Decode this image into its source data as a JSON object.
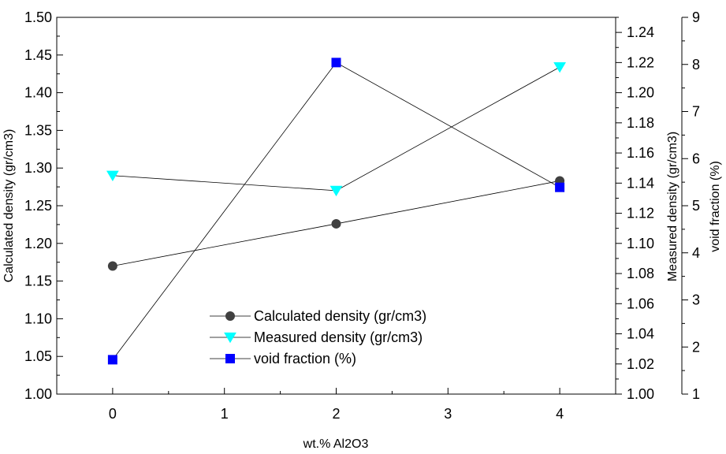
{
  "chart_data": {
    "type": "line",
    "title": "",
    "x": [
      0,
      2,
      4
    ],
    "xlabel": "wt.% Al2O3",
    "xlim": [
      -0.5,
      4.5
    ],
    "xticks": [
      0,
      1,
      2,
      3,
      4
    ],
    "grid": false,
    "legend_position": "bottom-center",
    "axes": {
      "left": {
        "label": "Calculated density (gr/cm3)",
        "ylim": [
          1.0,
          1.5
        ],
        "ticks": [
          "1.00",
          "1.05",
          "1.10",
          "1.15",
          "1.20",
          "1.25",
          "1.30",
          "1.35",
          "1.40",
          "1.45",
          "1.50"
        ]
      },
      "right1": {
        "label": "Measured density (gr/cm3)",
        "ylim": [
          1.0,
          1.25
        ],
        "ticks": [
          "1.00",
          "1.02",
          "1.04",
          "1.06",
          "1.08",
          "1.10",
          "1.12",
          "1.14",
          "1.16",
          "1.18",
          "1.20",
          "1.22",
          "1.24"
        ]
      },
      "right2": {
        "label": "void fraction (%)",
        "ylim": [
          1,
          9
        ],
        "ticks": [
          "1",
          "2",
          "3",
          "4",
          "5",
          "6",
          "7",
          "8",
          "9"
        ]
      }
    },
    "series": [
      {
        "name": "Calculated density (gr/cm3)",
        "axis": "left",
        "marker": "circle",
        "color": "#404040",
        "values": [
          1.17,
          1.226,
          1.283
        ]
      },
      {
        "name": "Measured density (gr/cm3)",
        "axis": "right1",
        "marker": "triangle-down",
        "color": "#00ffff",
        "values": [
          1.145,
          1.135,
          1.217
        ]
      },
      {
        "name": "void fraction (%)",
        "axis": "right2",
        "marker": "square",
        "color": "#0000ff",
        "values": [
          1.73,
          8.04,
          5.39
        ]
      }
    ]
  }
}
